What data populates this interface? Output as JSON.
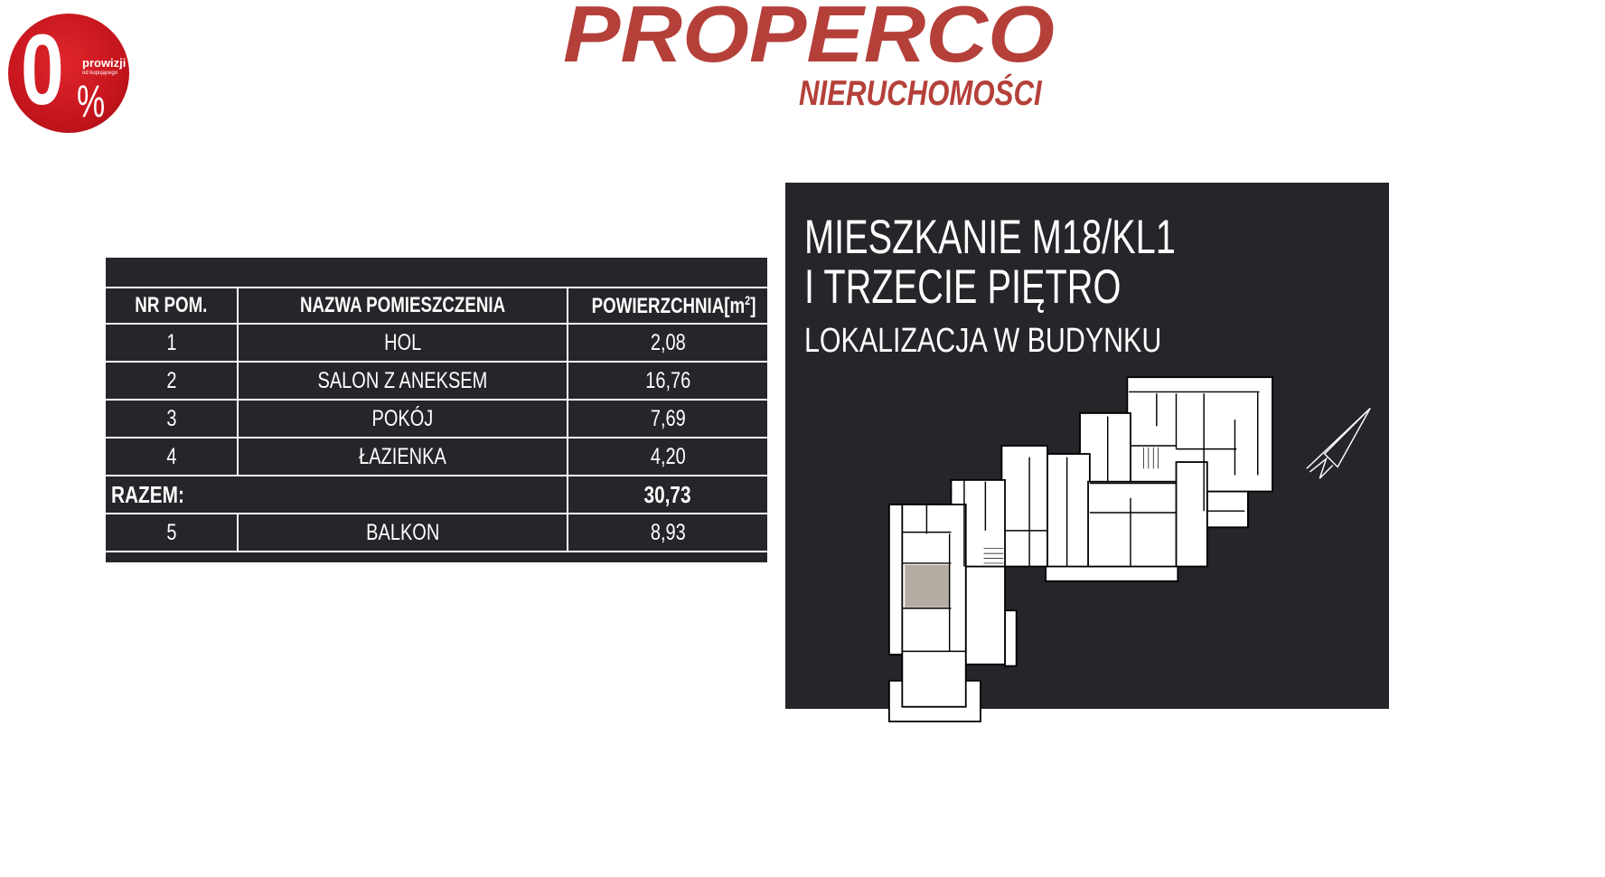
{
  "badge": {
    "big": "0",
    "percent": "%",
    "line1": "prowizji",
    "line2": "od kupującego",
    "color": "#c8161e"
  },
  "logo": {
    "main": "PROPERCO",
    "sub": "NIERUCHOMOŚCI",
    "color": "#b5403a"
  },
  "table": {
    "headers": [
      "NR POM.",
      "NAZWA POMIESZCZENIA",
      "POWIERZCHNIA[m",
      "2",
      "]"
    ],
    "rows": [
      {
        "nr": "1",
        "name": "HOL",
        "area": "2,08"
      },
      {
        "nr": "2",
        "name": "SALON Z ANEKSEM",
        "area": "16,76"
      },
      {
        "nr": "3",
        "name": "POKÓJ",
        "area": "7,69"
      },
      {
        "nr": "4",
        "name": "ŁAZIENKA",
        "area": "4,20"
      }
    ],
    "total": {
      "label": "RAZEM:",
      "area": "30,73"
    },
    "extra": {
      "nr": "5",
      "name": "BALKON",
      "area": "8,93"
    }
  },
  "panel": {
    "title_line1": "MIESZKANIE M18/KL1",
    "title_line2": "I TRZECIE PIĘTRO",
    "subtitle": "LOKALIZACJA W BUDYNKU",
    "background": "#24262a",
    "highlight_color": "#b5aca3",
    "compass_icon": "north-arrow-icon"
  }
}
